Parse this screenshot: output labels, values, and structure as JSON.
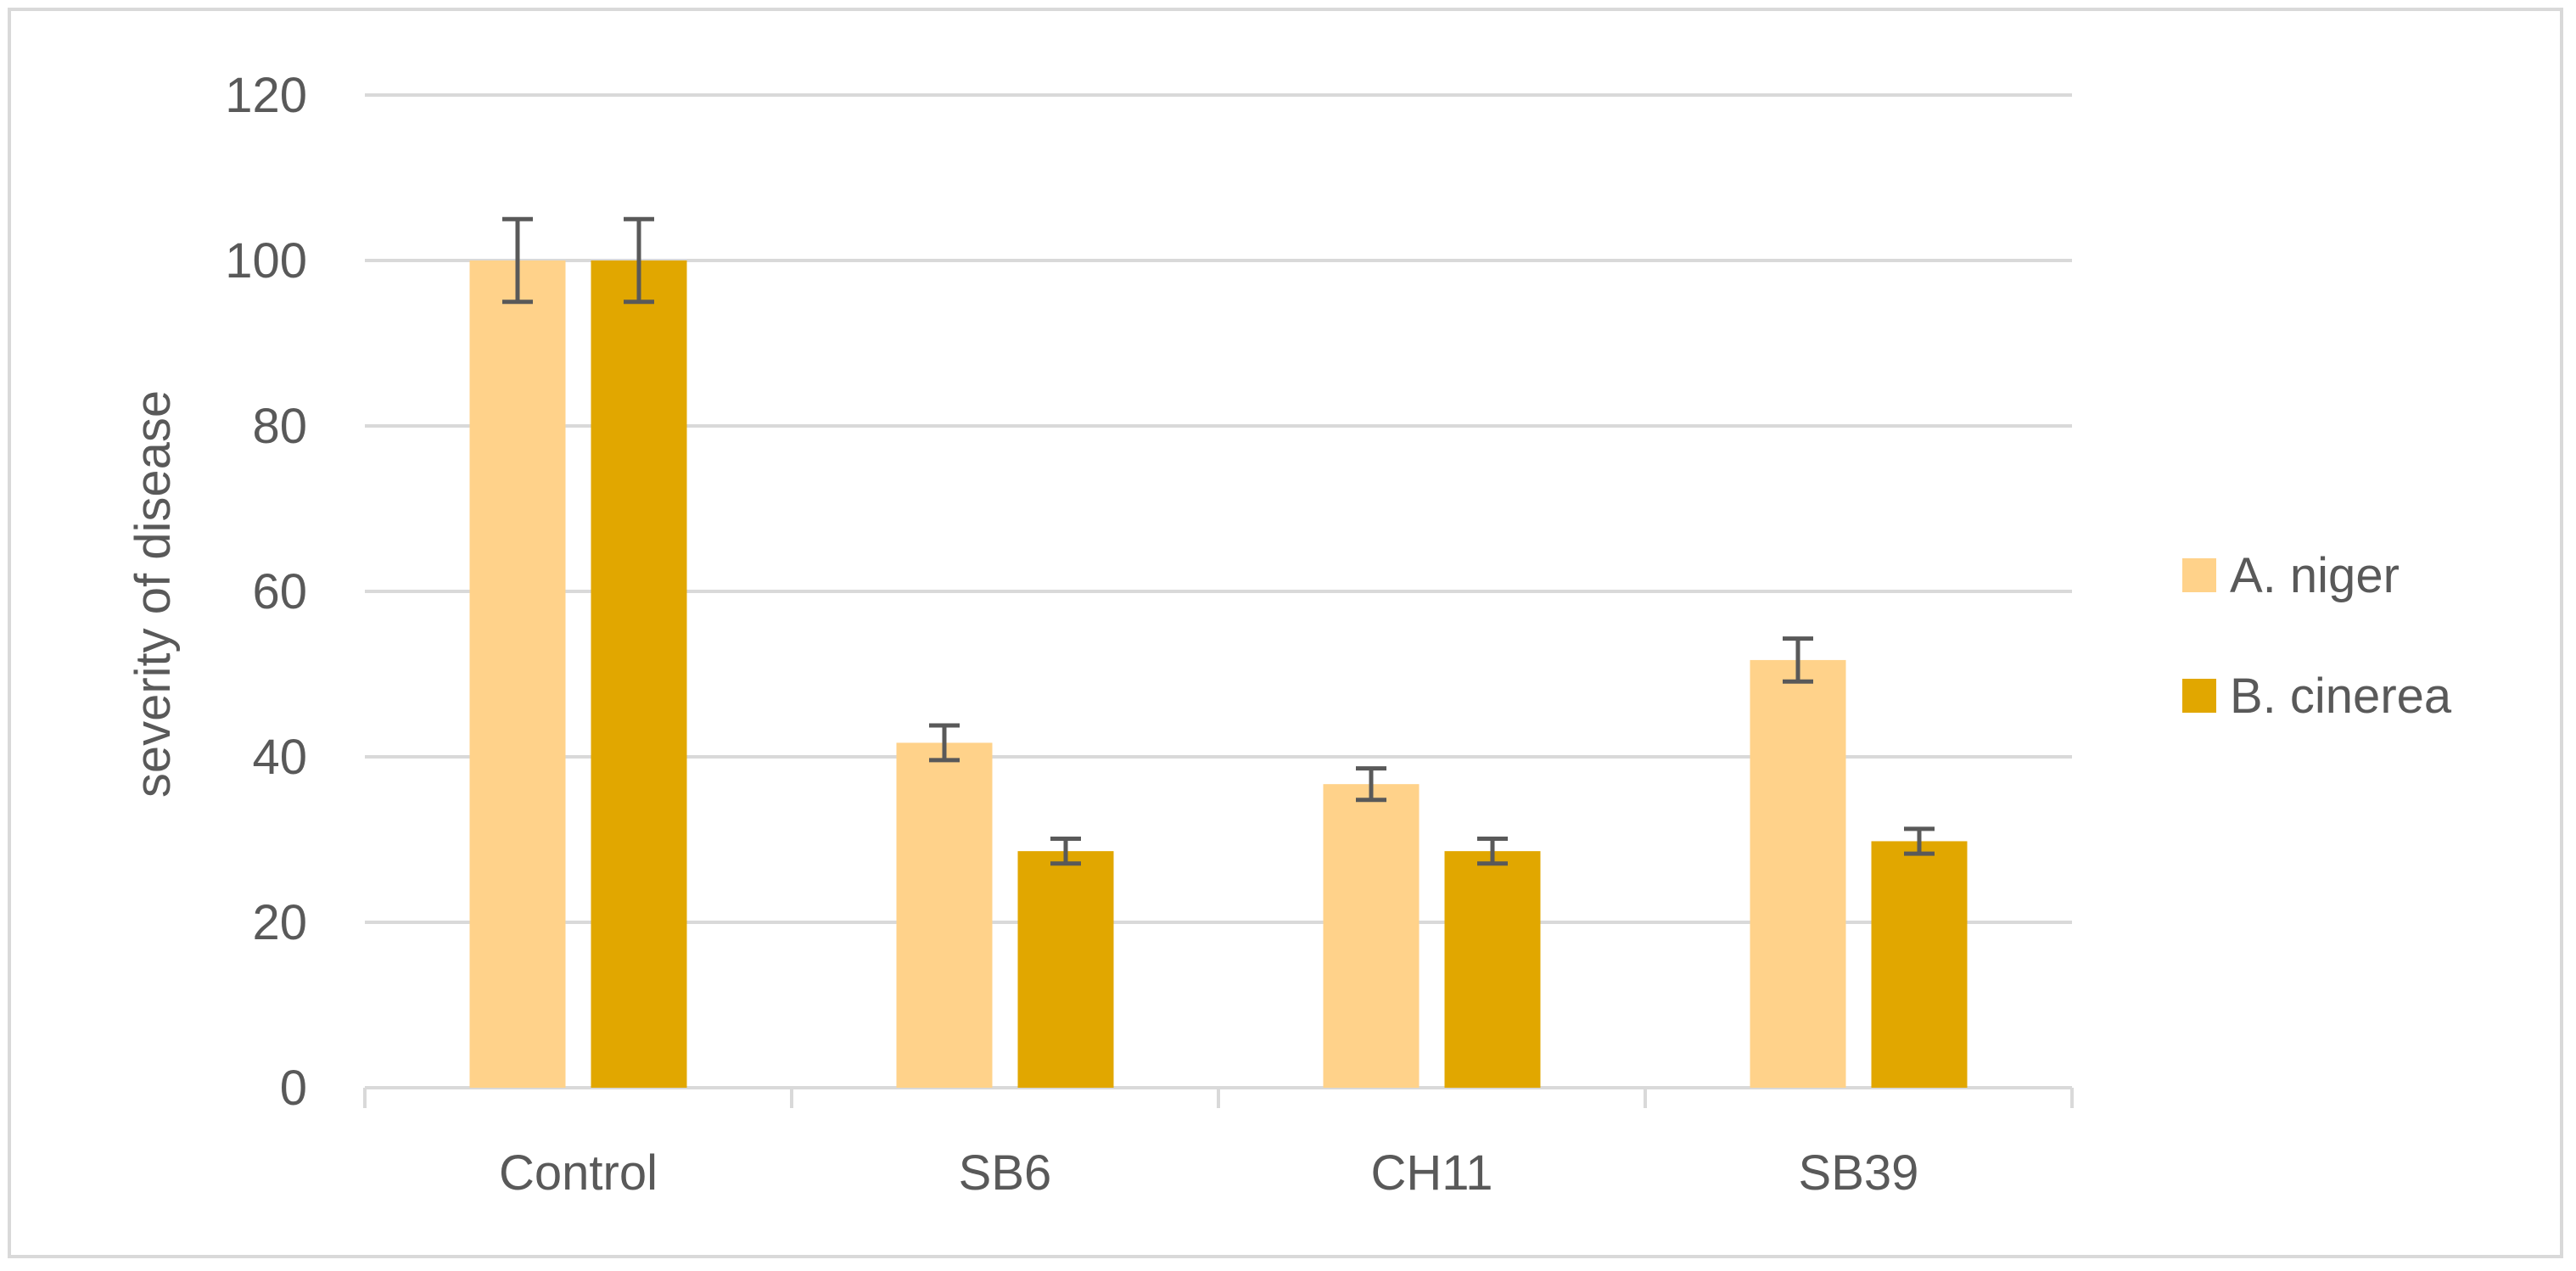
{
  "chart_data": {
    "type": "bar",
    "title": "",
    "xlabel": "",
    "ylabel": "severity of disease",
    "ylim": [
      0,
      120
    ],
    "yticks": [
      0,
      20,
      40,
      60,
      80,
      100,
      120
    ],
    "grid": true,
    "legend_position": "right",
    "categories": [
      "Control",
      "SB6",
      "CH11",
      "SB39"
    ],
    "series": [
      {
        "name": "A. niger",
        "color": "#ffd28a",
        "values": [
          100,
          41.7,
          36.7,
          51.7
        ],
        "errors": [
          5,
          2.1,
          1.9,
          2.6
        ]
      },
      {
        "name": "B. cinerea",
        "color": "#e1a700",
        "values": [
          100,
          28.6,
          28.6,
          29.8
        ],
        "errors": [
          5,
          1.5,
          1.5,
          1.5
        ]
      }
    ]
  }
}
